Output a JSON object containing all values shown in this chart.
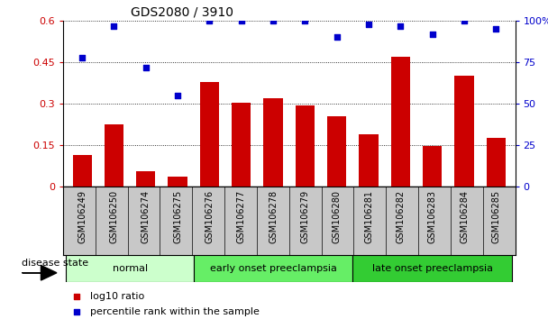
{
  "title": "GDS2080 / 3910",
  "samples": [
    "GSM106249",
    "GSM106250",
    "GSM106274",
    "GSM106275",
    "GSM106276",
    "GSM106277",
    "GSM106278",
    "GSM106279",
    "GSM106280",
    "GSM106281",
    "GSM106282",
    "GSM106283",
    "GSM106284",
    "GSM106285"
  ],
  "log10_ratio": [
    0.115,
    0.225,
    0.055,
    0.035,
    0.38,
    0.305,
    0.32,
    0.295,
    0.255,
    0.19,
    0.47,
    0.148,
    0.4,
    0.175
  ],
  "percentile_rank": [
    78,
    97,
    72,
    55,
    100,
    100,
    100,
    100,
    90,
    98,
    97,
    92,
    100,
    95
  ],
  "bar_color": "#cc0000",
  "dot_color": "#0000cc",
  "ylim_left": [
    0,
    0.6
  ],
  "ylim_right": [
    0,
    100
  ],
  "yticks_left": [
    0,
    0.15,
    0.3,
    0.45,
    0.6
  ],
  "ytick_labels_left": [
    "0",
    "0.15",
    "0.3",
    "0.45",
    "0.6"
  ],
  "yticks_right": [
    0,
    25,
    50,
    75,
    100
  ],
  "ytick_labels_right": [
    "0",
    "25",
    "50",
    "75",
    "100%"
  ],
  "groups": [
    {
      "label": "normal",
      "start": 0,
      "end": 4,
      "color": "#ccffcc"
    },
    {
      "label": "early onset preeclampsia",
      "start": 4,
      "end": 9,
      "color": "#66ee66"
    },
    {
      "label": "late onset preeclampsia",
      "start": 9,
      "end": 14,
      "color": "#33cc33"
    }
  ],
  "legend_items": [
    {
      "label": "log10 ratio",
      "color": "#cc0000"
    },
    {
      "label": "percentile rank within the sample",
      "color": "#0000cc"
    }
  ],
  "disease_state_label": "disease state",
  "tick_color_left": "#cc0000",
  "tick_color_right": "#0000cc",
  "xtick_bg_color": "#c8c8c8",
  "bar_width": 0.6,
  "fig_bg": "#ffffff"
}
